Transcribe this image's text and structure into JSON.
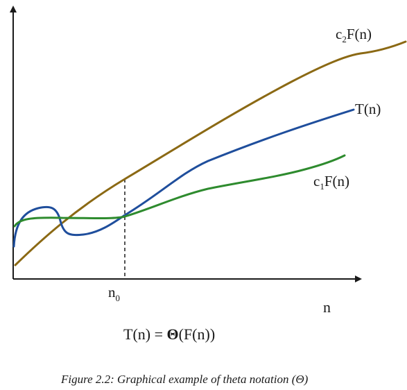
{
  "figure": {
    "curves": {
      "upper": {
        "label_prefix": "c",
        "label_sub": "2",
        "label_suffix": "F(n)",
        "color": "#8b6914"
      },
      "middle": {
        "label": "T(n)",
        "color": "#1f4e9c"
      },
      "lower": {
        "label_prefix": "c",
        "label_sub": "1",
        "label_suffix": "F(n)",
        "color": "#2e8b2e"
      }
    },
    "threshold": {
      "label_main": "n",
      "label_sub": "0"
    },
    "x_axis_label": "n",
    "equation": {
      "lhs": "T(n) = ",
      "theta": "Θ",
      "rhs": "(F(n))"
    },
    "axis_color": "#1a1a1a"
  },
  "caption": "Figure 2.2: Graphical example of theta notation (Θ)"
}
